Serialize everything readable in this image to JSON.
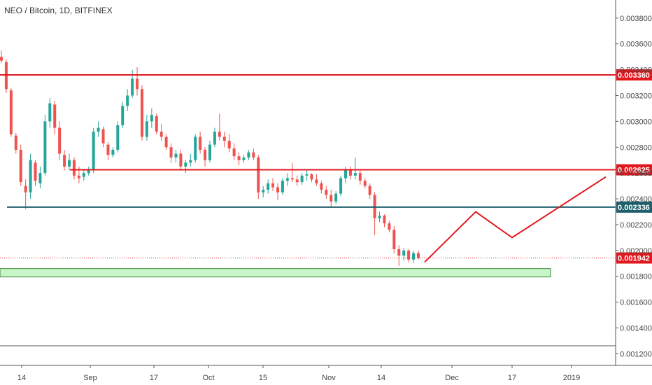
{
  "header": {
    "title": "NEO / Bitcoin, 1D, BITFINEX"
  },
  "chart_data": {
    "type": "candlestick",
    "symbol": "NEO / Bitcoin",
    "interval": "1D",
    "exchange": "BITFINEX",
    "ylim": [
      0.00111,
      0.00394
    ],
    "grid": false,
    "y_ticks": [
      "0.001200",
      "0.001400",
      "0.001600",
      "0.001800",
      "0.002000",
      "0.002200",
      "0.002400",
      "0.002600",
      "0.002800",
      "0.003000",
      "0.003200",
      "0.003400",
      "0.003600",
      "0.003800"
    ],
    "x_ticks": [
      "14",
      "Sep",
      "17",
      "Oct",
      "15",
      "Nov",
      "14",
      "Dec",
      "17",
      "2019"
    ],
    "colors": {
      "up": "#26a69a",
      "down": "#ef5350",
      "resistance": "#e0191f",
      "support": "#1e5f6b",
      "zone_fill": "#c8f5c8",
      "zone_border": "#3a8a3a",
      "projection": "#e0191f",
      "last_price": "#e0191f"
    },
    "horizontal_levels": [
      {
        "name": "resistance-1",
        "price": 0.00336,
        "label": "0.003360",
        "color": "#e0191f"
      },
      {
        "name": "resistance-2",
        "price": 0.002625,
        "label": "0.002625",
        "color": "#e0191f"
      },
      {
        "name": "support",
        "price": 0.002336,
        "label": "0.002336",
        "color": "#1e5f6b"
      }
    ],
    "last_price": {
      "price": 0.001942,
      "label": "0.001942"
    },
    "demand_zone": {
      "low": 0.001795,
      "high": 0.00186
    },
    "candles": [
      [
        0.0035,
        0.00355,
        0.00345,
        0.00347
      ],
      [
        0.00346,
        0.00348,
        0.00322,
        0.00325
      ],
      [
        0.00324,
        0.00326,
        0.00288,
        0.0029
      ],
      [
        0.00289,
        0.00291,
        0.00275,
        0.00278
      ],
      [
        0.00278,
        0.00282,
        0.0025,
        0.00253
      ],
      [
        0.0025,
        0.00255,
        0.00232,
        0.00245
      ],
      [
        0.00245,
        0.00275,
        0.0024,
        0.0027
      ],
      [
        0.00268,
        0.0027,
        0.0025,
        0.00254
      ],
      [
        0.00252,
        0.00265,
        0.00248,
        0.0026
      ],
      [
        0.0026,
        0.00305,
        0.00258,
        0.003
      ],
      [
        0.003,
        0.00318,
        0.00295,
        0.00314
      ],
      [
        0.00313,
        0.00316,
        0.0029,
        0.00295
      ],
      [
        0.00295,
        0.003,
        0.0027,
        0.00275
      ],
      [
        0.00274,
        0.00278,
        0.00262,
        0.00265
      ],
      [
        0.00265,
        0.00275,
        0.00262,
        0.0027
      ],
      [
        0.0027,
        0.00272,
        0.00255,
        0.00258
      ],
      [
        0.00258,
        0.00265,
        0.00252,
        0.00256
      ],
      [
        0.00257,
        0.00262,
        0.00254,
        0.0026
      ],
      [
        0.0026,
        0.00265,
        0.00258,
        0.00262
      ],
      [
        0.00262,
        0.00295,
        0.0026,
        0.00292
      ],
      [
        0.00292,
        0.003,
        0.00288,
        0.00295
      ],
      [
        0.00294,
        0.00296,
        0.0028,
        0.00283
      ],
      [
        0.00282,
        0.00284,
        0.0027,
        0.00274
      ],
      [
        0.00274,
        0.0028,
        0.00272,
        0.00278
      ],
      [
        0.00278,
        0.003,
        0.00276,
        0.00297
      ],
      [
        0.00297,
        0.00315,
        0.00295,
        0.00312
      ],
      [
        0.00312,
        0.00325,
        0.00308,
        0.0032
      ],
      [
        0.0032,
        0.0034,
        0.00318,
        0.00333
      ],
      [
        0.00333,
        0.00342,
        0.0032,
        0.00325
      ],
      [
        0.00325,
        0.00328,
        0.00285,
        0.00288
      ],
      [
        0.00288,
        0.00305,
        0.00285,
        0.003
      ],
      [
        0.003,
        0.0031,
        0.00295,
        0.00305
      ],
      [
        0.00304,
        0.00306,
        0.0029,
        0.00292
      ],
      [
        0.00292,
        0.00298,
        0.00285,
        0.00288
      ],
      [
        0.00288,
        0.0029,
        0.00278,
        0.0028
      ],
      [
        0.0028,
        0.00283,
        0.00268,
        0.00272
      ],
      [
        0.00272,
        0.00278,
        0.00268,
        0.00275
      ],
      [
        0.00275,
        0.00278,
        0.00262,
        0.00265
      ],
      [
        0.00265,
        0.0027,
        0.0026,
        0.00268
      ],
      [
        0.00268,
        0.00275,
        0.00265,
        0.0027
      ],
      [
        0.0027,
        0.0029,
        0.00268,
        0.00288
      ],
      [
        0.00288,
        0.00292,
        0.00275,
        0.00278
      ],
      [
        0.00278,
        0.0028,
        0.00265,
        0.0027
      ],
      [
        0.0027,
        0.00285,
        0.00268,
        0.00282
      ],
      [
        0.00282,
        0.00295,
        0.0028,
        0.00292
      ],
      [
        0.00292,
        0.00306,
        0.00285,
        0.00288
      ],
      [
        0.00288,
        0.00292,
        0.0028,
        0.00285
      ],
      [
        0.00285,
        0.0029,
        0.00276,
        0.00279
      ],
      [
        0.00279,
        0.00283,
        0.0027,
        0.00273
      ],
      [
        0.00273,
        0.00276,
        0.00266,
        0.0027
      ],
      [
        0.0027,
        0.00274,
        0.00268,
        0.00272
      ],
      [
        0.00272,
        0.00278,
        0.0027,
        0.00276
      ],
      [
        0.00276,
        0.00279,
        0.0027,
        0.00272
      ],
      [
        0.00272,
        0.00274,
        0.0024,
        0.00245
      ],
      [
        0.00245,
        0.0025,
        0.00241,
        0.00247
      ],
      [
        0.00247,
        0.00255,
        0.00244,
        0.00252
      ],
      [
        0.00252,
        0.00256,
        0.00246,
        0.00249
      ],
      [
        0.00249,
        0.00252,
        0.00239,
        0.00245
      ],
      [
        0.00245,
        0.00256,
        0.00243,
        0.00254
      ],
      [
        0.00254,
        0.0026,
        0.0025,
        0.00256
      ],
      [
        0.00256,
        0.00268,
        0.00253,
        0.00255
      ],
      [
        0.00255,
        0.00258,
        0.0025,
        0.00253
      ],
      [
        0.00253,
        0.0026,
        0.00251,
        0.00258
      ],
      [
        0.00258,
        0.00262,
        0.00254,
        0.00259
      ],
      [
        0.00259,
        0.0026,
        0.00253,
        0.00255
      ],
      [
        0.00255,
        0.00259,
        0.0025,
        0.00252
      ],
      [
        0.00252,
        0.00254,
        0.00244,
        0.00247
      ],
      [
        0.00247,
        0.0025,
        0.0024,
        0.00243
      ],
      [
        0.00243,
        0.00247,
        0.00234,
        0.00238
      ],
      [
        0.00238,
        0.00246,
        0.00236,
        0.00244
      ],
      [
        0.00244,
        0.00258,
        0.00242,
        0.00256
      ],
      [
        0.00256,
        0.00265,
        0.00252,
        0.00262
      ],
      [
        0.00262,
        0.00265,
        0.00255,
        0.00258
      ],
      [
        0.00258,
        0.00272,
        0.00255,
        0.0026
      ],
      [
        0.0026,
        0.00262,
        0.00251,
        0.00254
      ],
      [
        0.00254,
        0.00256,
        0.00248,
        0.0025
      ],
      [
        0.0025,
        0.00252,
        0.0024,
        0.00243
      ],
      [
        0.00243,
        0.00245,
        0.00212,
        0.00225
      ],
      [
        0.00225,
        0.0023,
        0.00222,
        0.00227
      ],
      [
        0.00227,
        0.00228,
        0.00218,
        0.00221
      ],
      [
        0.00221,
        0.00223,
        0.00214,
        0.00216
      ],
      [
        0.00216,
        0.00219,
        0.00198,
        0.00201
      ],
      [
        0.00201,
        0.00204,
        0.00188,
        0.00196
      ],
      [
        0.00196,
        0.00202,
        0.00192,
        0.002
      ],
      [
        0.002,
        0.00201,
        0.00191,
        0.00193
      ],
      [
        0.00193,
        0.002,
        0.0019,
        0.00198
      ],
      [
        0.00198,
        0.002,
        0.00193,
        0.00194
      ]
    ],
    "projection": [
      {
        "date": "late Nov",
        "price": 0.00191
      },
      {
        "date": "early Dec",
        "price": 0.0023
      },
      {
        "date": "17 Dec",
        "price": 0.0021
      },
      {
        "date": "early Jan",
        "price": 0.00257
      }
    ]
  }
}
